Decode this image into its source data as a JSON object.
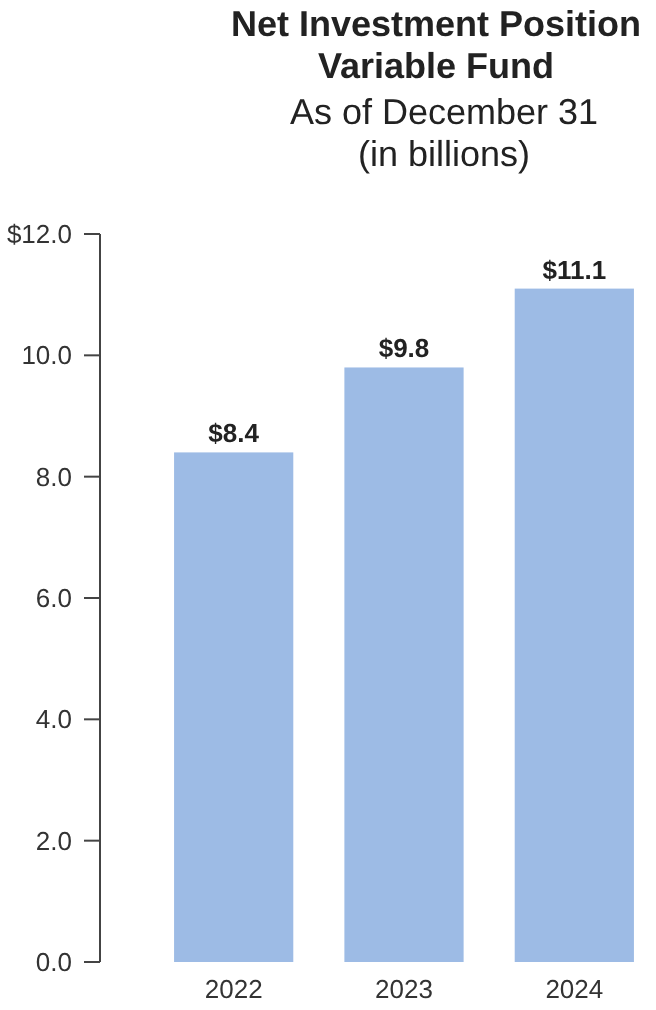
{
  "chart_data": {
    "type": "bar",
    "title": "Net Investment Position\nVariable Fund",
    "subtitle": "As of December 31\n(in billions)",
    "categories": [
      "2022",
      "2023",
      "2024"
    ],
    "values": [
      8.4,
      9.8,
      11.1
    ],
    "color": "#9dbbe5",
    "value_labels": [
      "$8.4",
      "$9.8",
      "$11.1"
    ],
    "ylim": [
      0,
      12
    ],
    "yticks": [
      {
        "value": 0,
        "label": "0.0"
      },
      {
        "value": 2,
        "label": "2.0"
      },
      {
        "value": 4,
        "label": "4.0"
      },
      {
        "value": 6,
        "label": "6.0"
      },
      {
        "value": 8,
        "label": "8.0"
      },
      {
        "value": 10,
        "label": "10.0"
      },
      {
        "value": 12,
        "label": "$12.0"
      }
    ],
    "grid": false
  }
}
